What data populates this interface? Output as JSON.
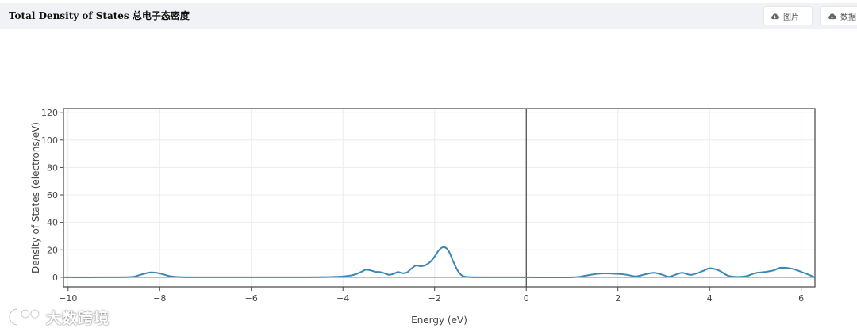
{
  "header": {
    "title": "Total Density of States 总电子态密度",
    "btn_image": "图片",
    "btn_data": "数据"
  },
  "watermark": {
    "text": "大数跨境"
  },
  "colors": {
    "line": "#3a86b4",
    "axis": "#444444",
    "grid": "#ececec",
    "header_bg": "#f0f2f5"
  },
  "chart_data": {
    "type": "line",
    "title": "",
    "xlabel": "Energy (eV)",
    "ylabel": "Density of States (electrons/eV)",
    "xlim": [
      -10.1,
      6.3
    ],
    "ylim": [
      -7,
      123
    ],
    "xticks": [
      -10,
      -8,
      -6,
      -4,
      -2,
      0,
      2,
      4,
      6
    ],
    "yticks": [
      0,
      20,
      40,
      60,
      80,
      100,
      120
    ],
    "xtick_labels": [
      "−10",
      "−8",
      "−6",
      "−4",
      "−2",
      "0",
      "2",
      "4",
      "6"
    ],
    "ytick_labels": [
      "0",
      "20",
      "40",
      "60",
      "80",
      "100",
      "120"
    ],
    "grid": true,
    "vertical_line_x": 0,
    "horizontal_line_y": 0,
    "x": [
      -10.1,
      -9.0,
      -8.6,
      -8.4,
      -8.2,
      -8.0,
      -7.8,
      -7.6,
      -7.2,
      -6.0,
      -5.0,
      -4.2,
      -3.8,
      -3.6,
      -3.5,
      -3.4,
      -3.3,
      -3.2,
      -3.1,
      -3.0,
      -2.9,
      -2.8,
      -2.7,
      -2.6,
      -2.5,
      -2.4,
      -2.3,
      -2.2,
      -2.1,
      -2.0,
      -1.9,
      -1.8,
      -1.7,
      -1.6,
      -1.5,
      -1.4,
      -1.3,
      -1.1,
      -0.5,
      0.0,
      1.0,
      1.3,
      1.6,
      2.0,
      2.2,
      2.4,
      2.6,
      2.8,
      3.0,
      3.1,
      3.2,
      3.4,
      3.6,
      3.85,
      4.0,
      4.2,
      4.4,
      4.6,
      4.8,
      5.0,
      5.2,
      5.4,
      5.5,
      5.6,
      5.8,
      6.0,
      6.3
    ],
    "y": [
      0,
      0,
      0.3,
      2,
      3.5,
      2.8,
      1,
      0.2,
      0,
      0,
      0,
      0.3,
      1.5,
      4,
      5.5,
      5,
      4,
      3.8,
      3,
      1.8,
      2.5,
      3.8,
      3,
      3.6,
      6.5,
      8.5,
      8,
      8.8,
      11,
      15,
      20,
      22,
      19.5,
      12,
      5,
      1.2,
      0.3,
      0,
      0,
      0,
      0,
      1.2,
      2.7,
      2.5,
      1.8,
      0.7,
      2.2,
      3.2,
      1.5,
      0.4,
      1.2,
      3.2,
      1.8,
      4.5,
      6.5,
      5,
      1.2,
      0.3,
      0.8,
      3,
      3.8,
      5,
      6.5,
      6.9,
      6.2,
      4,
      0
    ]
  }
}
